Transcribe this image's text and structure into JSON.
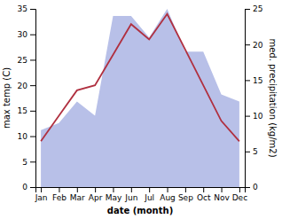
{
  "chart_data": {
    "type": "line",
    "categories": [
      "Jan",
      "Feb",
      "Mar",
      "Apr",
      "May",
      "Jun",
      "Jul",
      "Aug",
      "Sep",
      "Oct",
      "Nov",
      "Dec"
    ],
    "series": [
      {
        "type": "area",
        "axis": "y2",
        "color": "#b8c0e8",
        "values": [
          8,
          9,
          12,
          10,
          24,
          24,
          21,
          25,
          19,
          19,
          13,
          12
        ]
      },
      {
        "type": "line",
        "color": "#b03040",
        "values": [
          9,
          14,
          19,
          20,
          26,
          32,
          29,
          34,
          27,
          20,
          13,
          9
        ]
      }
    ],
    "xlabel": "date (month)",
    "ylabel": "max temp (C)",
    "y2label": "med. precipitation (kg/m2)",
    "ylim": [
      0,
      35
    ],
    "yticks": [
      0,
      5,
      10,
      15,
      20,
      25,
      30,
      35
    ],
    "y2lim": [
      0,
      25
    ],
    "y2ticks": [
      0,
      5,
      10,
      15,
      20,
      25
    ],
    "grid": false
  }
}
